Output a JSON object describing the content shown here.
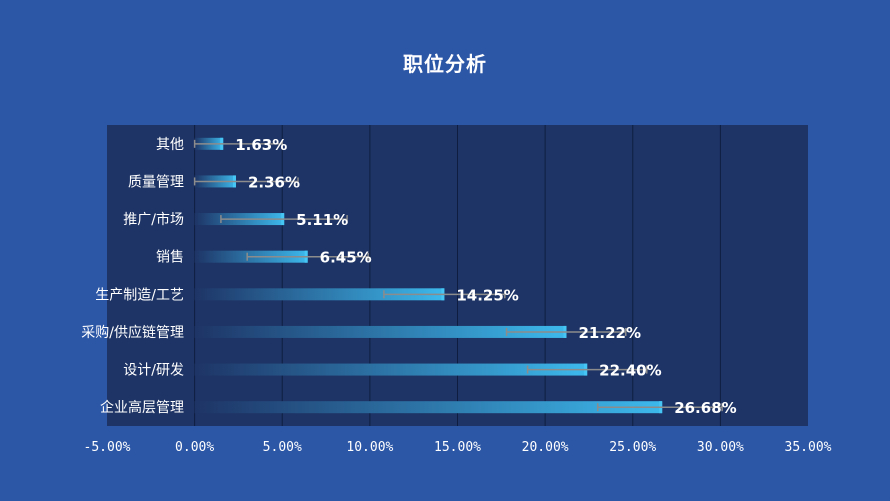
{
  "chart_data": {
    "type": "bar",
    "orientation": "horizontal",
    "title": "职位分析",
    "categories": [
      "其他",
      "质量管理",
      "推广/市场",
      "销售",
      "生产制造/工艺",
      "采购/供应链管理",
      "设计/研发",
      "企业高层管理"
    ],
    "values": [
      1.63,
      2.36,
      5.11,
      6.45,
      14.25,
      21.22,
      22.4,
      26.68
    ],
    "value_labels": [
      "1.63%",
      "2.36%",
      "5.11%",
      "6.45%",
      "14.25%",
      "21.22%",
      "22.40%",
      "26.68%"
    ],
    "error_low": [
      0.0,
      0.0,
      1.5,
      3.0,
      10.8,
      17.8,
      19.0,
      23.0
    ],
    "error_high": [
      5.0,
      5.9,
      8.7,
      9.9,
      17.7,
      24.6,
      25.8,
      30.1
    ],
    "xlim": [
      -5,
      35
    ],
    "x_ticks": [
      -5,
      0,
      5,
      10,
      15,
      20,
      25,
      30,
      35
    ],
    "x_tick_labels": [
      "-5.00%",
      "0.00%",
      "5.00%",
      "10.00%",
      "15.00%",
      "20.00%",
      "25.00%",
      "30.00%",
      "35.00%"
    ],
    "grid": "vertical",
    "legend": "none",
    "colors": {
      "background": "#2c56a6",
      "plot_area": "#1e3466",
      "bar_start": "#1e3466",
      "bar_end": "#3db9ec",
      "bar_cap": "#46c6f5",
      "error_bar": "#8c8c8c",
      "gridline": "#0f1e40",
      "text": "#ffffff"
    }
  }
}
